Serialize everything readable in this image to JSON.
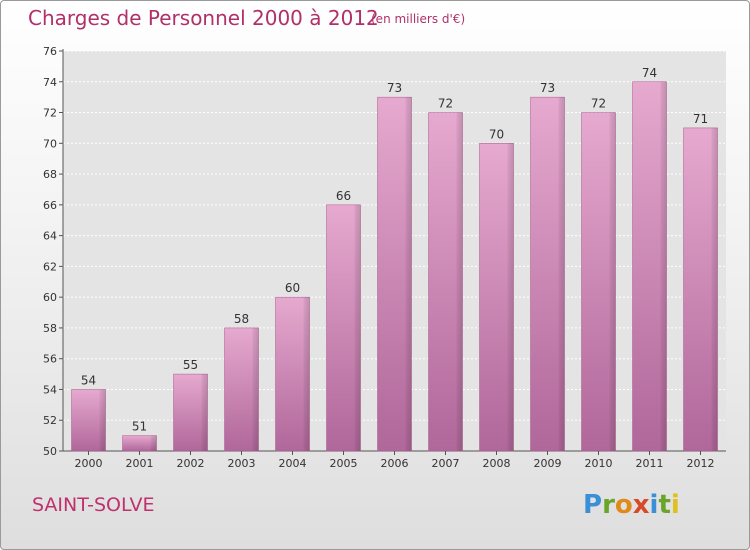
{
  "header": {
    "title": "Charges de Personnel 2000 à 2012",
    "unit": "(en milliers d'€)"
  },
  "footer": {
    "commune": "SAINT-SOLVE",
    "brand": "Proxiti"
  },
  "colors": {
    "bar": "#d98cb8",
    "title": "#b0306a",
    "brand": [
      "#3b8fd6",
      "#6aa52a",
      "#e08a1a",
      "#d64a2a",
      "#3b8fd6",
      "#6aa52a",
      "#e0c01a"
    ]
  },
  "chart_data": {
    "type": "bar",
    "title": "Charges de Personnel 2000 à 2012",
    "xlabel": "",
    "ylabel": "",
    "categories": [
      "2000",
      "2001",
      "2002",
      "2003",
      "2004",
      "2005",
      "2006",
      "2007",
      "2008",
      "2009",
      "2010",
      "2011",
      "2012"
    ],
    "values": [
      54,
      51,
      55,
      58,
      60,
      66,
      73,
      72,
      70,
      73,
      72,
      74,
      71
    ],
    "ylim": [
      50,
      76
    ],
    "yticks": [
      50,
      52,
      54,
      56,
      58,
      60,
      62,
      64,
      66,
      68,
      70,
      72,
      74,
      76
    ],
    "grid": true
  }
}
